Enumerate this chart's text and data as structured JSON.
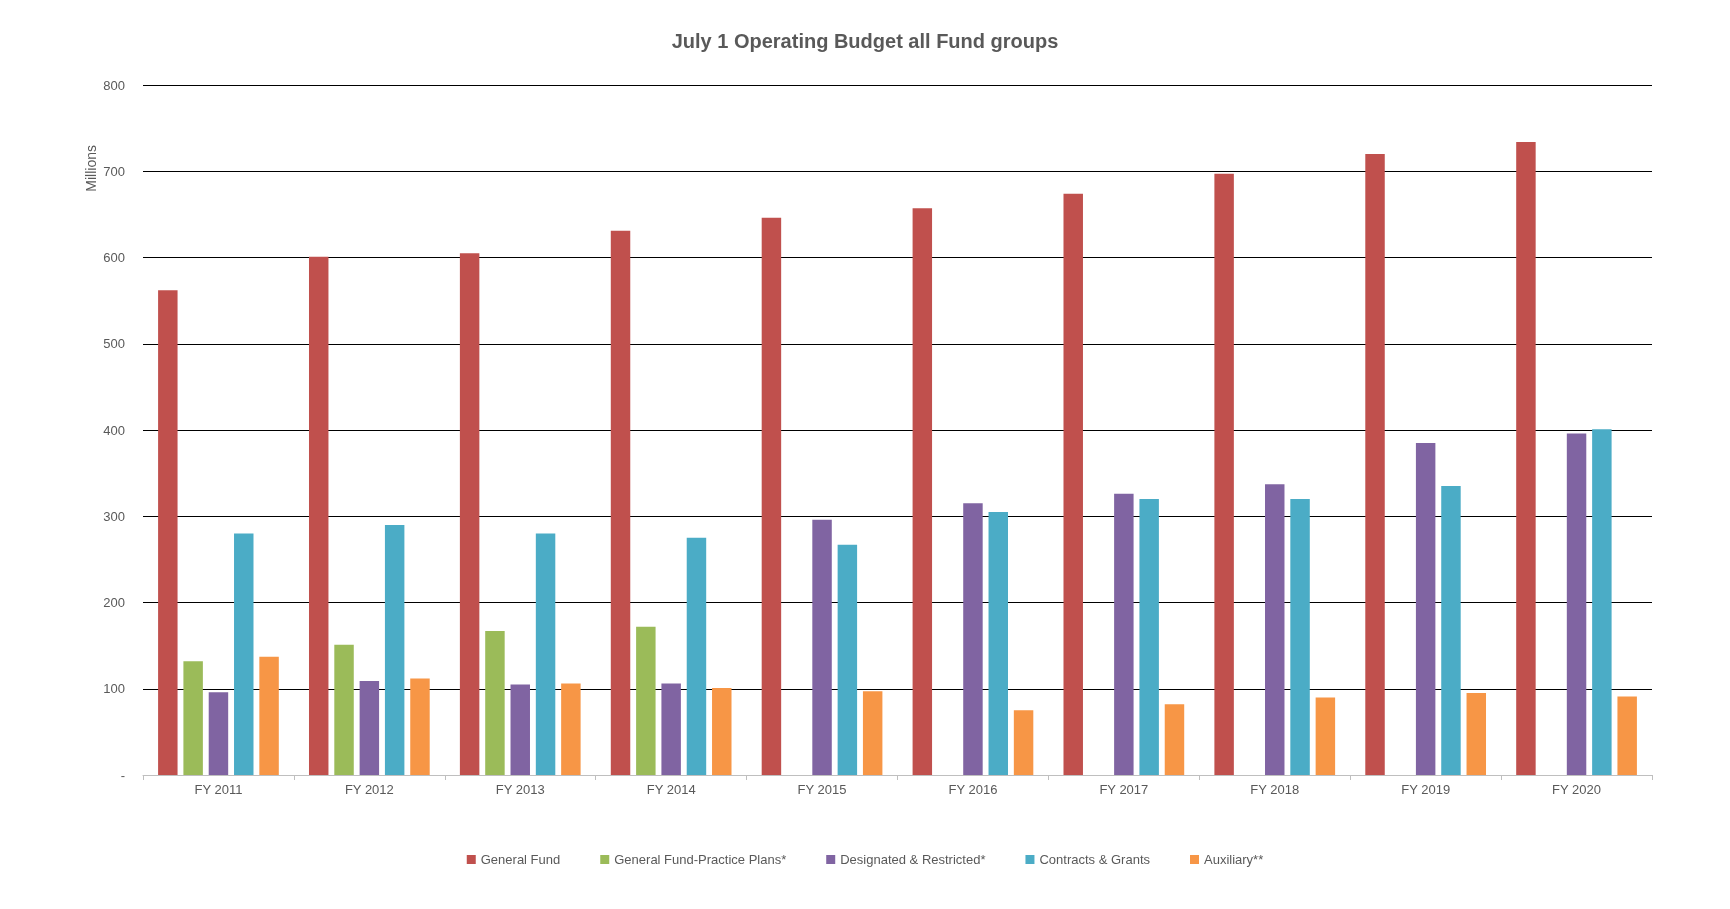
{
  "chart_data": {
    "type": "bar",
    "title": "July 1 Operating Budget all Fund groups",
    "ylabel": "Millions",
    "categories": [
      "FY 2011",
      "FY 2012",
      "FY 2013",
      "FY 2014",
      "FY 2015",
      "FY 2016",
      "FY 2017",
      "FY 2018",
      "FY 2019",
      "FY 2020"
    ],
    "series": [
      {
        "name": "General Fund",
        "color": "#c0504d",
        "values": [
          562,
          601,
          605,
          631,
          646,
          657,
          674,
          697,
          720,
          734
        ]
      },
      {
        "name": "General Fund-Practice Plans*",
        "color": "#9bbb59",
        "values": [
          132,
          151,
          167,
          172,
          null,
          null,
          null,
          null,
          null,
          null
        ]
      },
      {
        "name": "Designated & Restricted*",
        "color": "#8064a2",
        "values": [
          96,
          109,
          105,
          106,
          296,
          315,
          326,
          337,
          385,
          396
        ]
      },
      {
        "name": "Contracts & Grants",
        "color": "#4bacc6",
        "values": [
          280,
          290,
          280,
          275,
          267,
          305,
          320,
          320,
          335,
          401
        ]
      },
      {
        "name": "Auxiliary**",
        "color": "#f79646",
        "values": [
          137,
          112,
          106,
          101,
          97,
          75,
          82,
          90,
          95,
          91
        ]
      }
    ],
    "ylim": [
      0,
      800
    ],
    "yticks": [
      {
        "value": 0,
        "label": "-"
      },
      100,
      200,
      300,
      400,
      500,
      600,
      700,
      800
    ],
    "grid": "y",
    "legend": "bottom"
  }
}
